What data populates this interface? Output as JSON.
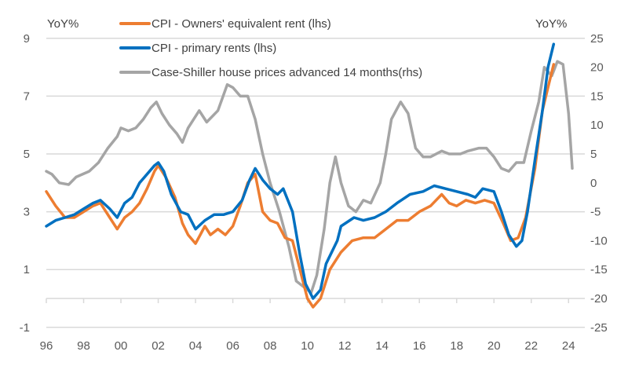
{
  "chart_data": {
    "type": "line",
    "title": "",
    "left_axis": {
      "label": "YoY%",
      "range": [
        -1,
        9
      ],
      "ticks": [
        -1,
        1,
        3,
        5,
        7,
        9
      ]
    },
    "right_axis": {
      "label": "YoY%",
      "range": [
        -25,
        25
      ],
      "ticks": [
        -25,
        -20,
        -15,
        -10,
        -5,
        0,
        5,
        10,
        15,
        20,
        25
      ]
    },
    "x_axis": {
      "range": [
        1996,
        2025
      ],
      "ticks": [
        1996,
        1998,
        2000,
        2002,
        2004,
        2006,
        2008,
        2010,
        2012,
        2014,
        2016,
        2018,
        2020,
        2022,
        2024
      ],
      "tick_labels": [
        "96",
        "98",
        "00",
        "02",
        "04",
        "06",
        "08",
        "10",
        "12",
        "14",
        "16",
        "18",
        "20",
        "22",
        "24"
      ]
    },
    "grid": true,
    "legend_position": "top-left",
    "series": [
      {
        "name": "CPI - Owners' equivalent rent (lhs)",
        "axis": "left",
        "color": "#ED7D31",
        "x": [
          1996,
          1996.5,
          1997,
          1997.5,
          1998,
          1998.5,
          1998.9,
          1999.4,
          1999.8,
          2000.2,
          2000.6,
          2001,
          2001.4,
          2001.8,
          2002,
          2002.4,
          2002.9,
          2003.3,
          2003.6,
          2004,
          2004.5,
          2004.8,
          2005.2,
          2005.6,
          2006,
          2006.4,
          2006.8,
          2007.2,
          2007.6,
          2008,
          2008.4,
          2008.8,
          2009.2,
          2009.6,
          2010,
          2010.3,
          2010.7,
          2011.2,
          2011.8,
          2012.4,
          2013,
          2013.6,
          2014.2,
          2014.8,
          2015.4,
          2016,
          2016.6,
          2017.2,
          2017.6,
          2018,
          2018.5,
          2019,
          2019.5,
          2020,
          2020.5,
          2020.9,
          2021.3,
          2021.7,
          2022.2,
          2022.6,
          2022.9,
          2023.2
        ],
        "values": [
          3.7,
          3.2,
          2.8,
          2.8,
          3.0,
          3.2,
          3.3,
          2.8,
          2.4,
          2.8,
          3.0,
          3.3,
          3.8,
          4.4,
          4.6,
          4.2,
          3.5,
          2.6,
          2.2,
          1.9,
          2.5,
          2.2,
          2.4,
          2.2,
          2.5,
          3.2,
          4.0,
          4.3,
          3.0,
          2.7,
          2.6,
          2.1,
          2.0,
          1.0,
          0.0,
          -0.3,
          0.0,
          1.0,
          1.6,
          2.0,
          2.1,
          2.1,
          2.4,
          2.7,
          2.7,
          3.0,
          3.2,
          3.6,
          3.3,
          3.2,
          3.4,
          3.3,
          3.4,
          3.3,
          2.6,
          2.0,
          2.1,
          2.8,
          4.5,
          6.5,
          7.3,
          8.1
        ]
      },
      {
        "name": "CPI - primary rents (lhs)",
        "axis": "left",
        "color": "#0070C0",
        "x": [
          1996,
          1996.5,
          1997,
          1997.5,
          1998,
          1998.5,
          1998.9,
          1999.4,
          1999.8,
          2000.2,
          2000.6,
          2001,
          2001.4,
          2001.8,
          2002,
          2002.3,
          2002.7,
          2003.2,
          2003.6,
          2004,
          2004.5,
          2005,
          2005.5,
          2006,
          2006.5,
          2006.9,
          2007.2,
          2007.6,
          2008,
          2008.4,
          2008.7,
          2009.2,
          2009.6,
          2009.9,
          2010.3,
          2010.7,
          2011,
          2011.6,
          2011.8,
          2012.5,
          2013,
          2013.6,
          2014.2,
          2014.8,
          2015.5,
          2016.2,
          2016.8,
          2017.4,
          2018,
          2018.6,
          2019,
          2019.4,
          2020,
          2020.4,
          2020.8,
          2021.2,
          2021.5,
          2021.8,
          2022.2,
          2022.6,
          2022.9,
          2023.2
        ],
        "values": [
          2.5,
          2.7,
          2.8,
          2.9,
          3.1,
          3.3,
          3.4,
          3.1,
          2.8,
          3.3,
          3.5,
          4.0,
          4.3,
          4.6,
          4.7,
          4.4,
          3.6,
          3.0,
          2.9,
          2.4,
          2.7,
          2.9,
          2.9,
          3.0,
          3.4,
          4.1,
          4.5,
          4.1,
          3.8,
          3.6,
          3.8,
          3.0,
          1.5,
          0.5,
          0.0,
          0.3,
          1.2,
          2.0,
          2.5,
          2.8,
          2.7,
          2.8,
          3.0,
          3.3,
          3.6,
          3.7,
          3.9,
          3.8,
          3.7,
          3.6,
          3.5,
          3.8,
          3.7,
          3.0,
          2.2,
          1.8,
          2.0,
          3.0,
          4.8,
          6.5,
          8.0,
          8.8
        ]
      },
      {
        "name": "Case-Shiller house prices advanced 14 months(rhs)",
        "axis": "right",
        "color": "#A5A5A5",
        "x": [
          1996,
          1996.3,
          1996.7,
          1997.2,
          1997.6,
          1998.3,
          1998.8,
          1999.3,
          1999.8,
          2000,
          2000.4,
          2000.8,
          2001.2,
          2001.6,
          2001.9,
          2002.2,
          2002.6,
          2003,
          2003.3,
          2003.6,
          2004.2,
          2004.6,
          2005.2,
          2005.7,
          2006,
          2006.4,
          2006.8,
          2007.2,
          2007.6,
          2008,
          2008.5,
          2009,
          2009.4,
          2010.2,
          2010.5,
          2010.9,
          2011.2,
          2011.5,
          2011.8,
          2012.2,
          2012.6,
          2013,
          2013.4,
          2013.9,
          2014.2,
          2014.5,
          2015,
          2015.4,
          2015.8,
          2016.2,
          2016.6,
          2017.2,
          2017.6,
          2018.2,
          2018.6,
          2019.2,
          2019.6,
          2020,
          2020.4,
          2020.8,
          2021.2,
          2021.6,
          2022,
          2022.4,
          2022.7,
          2023.1,
          2023.4,
          2023.7,
          2024,
          2024.2
        ],
        "values": [
          2,
          1.5,
          0,
          -0.3,
          1,
          2,
          3.5,
          6,
          8,
          9.5,
          9,
          9.5,
          11,
          13,
          14,
          12,
          10,
          8.5,
          7,
          9.5,
          12.5,
          10.5,
          12.5,
          17,
          16.5,
          15,
          15,
          11,
          5,
          0,
          -5,
          -11,
          -17,
          -19,
          -16,
          -8,
          0,
          4.5,
          0,
          -4,
          -5,
          -3,
          -3.5,
          0,
          5,
          11,
          14,
          12,
          6,
          4.5,
          4.5,
          5.5,
          5,
          5,
          5.5,
          6,
          6,
          4.5,
          2.5,
          2,
          3.5,
          3.5,
          9,
          14,
          20,
          18.5,
          21,
          20.5,
          12,
          2.5
        ]
      }
    ]
  }
}
